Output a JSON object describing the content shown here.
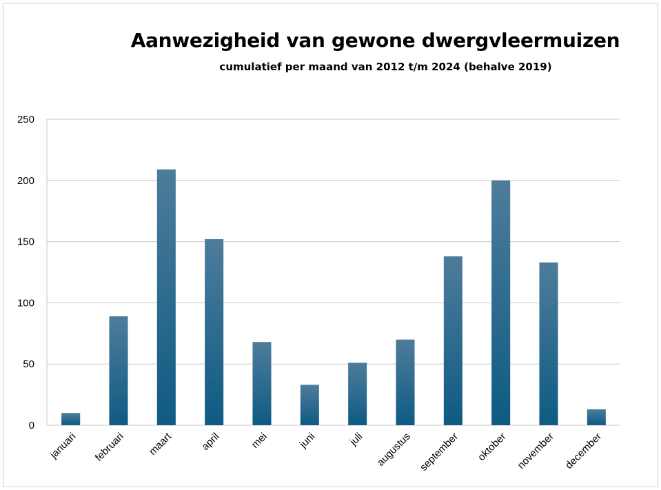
{
  "chart_data": {
    "type": "bar",
    "title": "Aanwezigheid van gewone dwergvleermuizen",
    "subtitle": "cumulatief per maand van 2012 t/m 2024 (behalve 2019)",
    "xlabel": "",
    "ylabel": "",
    "categories": [
      "januari",
      "februari",
      "maart",
      "april",
      "mei",
      "juni",
      "juli",
      "augustus",
      "september",
      "oktober",
      "november",
      "december"
    ],
    "values": [
      10,
      89,
      209,
      152,
      68,
      33,
      51,
      70,
      138,
      200,
      133,
      13
    ],
    "ylim": [
      0,
      250
    ],
    "yticks": [
      0,
      50,
      100,
      150,
      200,
      250
    ],
    "grid": true,
    "legend": "none",
    "colors": {
      "bar_top": "#4E7C9B",
      "bar_bottom": "#0E5B83",
      "grid": "#c8c8c8"
    }
  }
}
